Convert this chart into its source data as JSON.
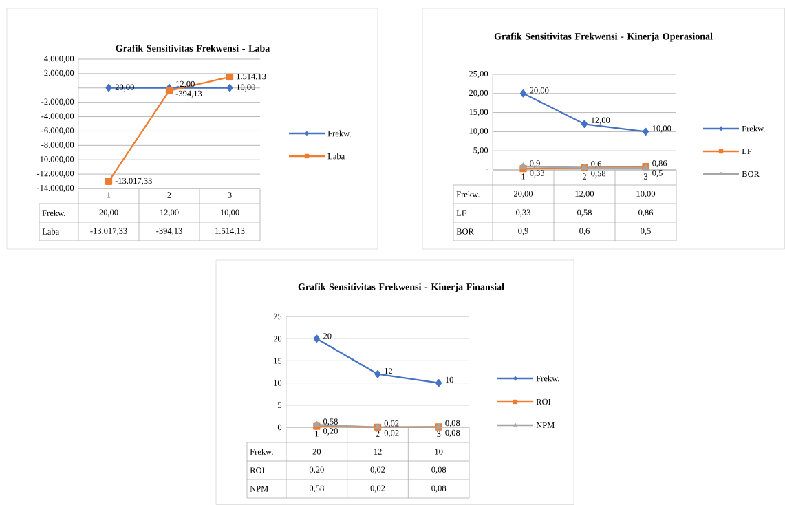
{
  "chart_data": [
    {
      "type": "line",
      "title": "Grafik Sensitivitas Frekwensi - Laba",
      "categories": [
        "1",
        "2",
        "3"
      ],
      "ylim": [
        -14000,
        4000
      ],
      "yticks": [
        {
          "value": -14000,
          "label": "-14.000,00"
        },
        {
          "value": -12000,
          "label": "-12.000,00"
        },
        {
          "value": -10000,
          "label": "-10.000,00"
        },
        {
          "value": -8000,
          "label": "-8.000,00"
        },
        {
          "value": -6000,
          "label": "-6.000,00"
        },
        {
          "value": -4000,
          "label": "-4.000,00"
        },
        {
          "value": -2000,
          "label": "-2.000,00"
        },
        {
          "value": 0,
          "label": "-"
        },
        {
          "value": 2000,
          "label": "2.000,00"
        },
        {
          "value": 4000,
          "label": "4.000,00"
        }
      ],
      "grid": "y",
      "legend": "right",
      "series": [
        {
          "name": "Frekw.",
          "color": "#4472c4",
          "marker": "diamond",
          "values": [
            20,
            12,
            10
          ],
          "value_labels": [
            "20,00",
            "12,00",
            "10,00"
          ]
        },
        {
          "name": "Laba",
          "color": "#ed7d31",
          "marker": "square",
          "values": [
            -13017.33,
            -394.13,
            1514.13
          ],
          "value_labels": [
            "-13.017,33",
            "-394,13",
            "1.514,13"
          ]
        }
      ]
    },
    {
      "type": "line",
      "title": "Grafik Sensitivitas Frekwensi - Kinerja Operasional",
      "categories": [
        "1",
        "2",
        "3"
      ],
      "ylim": [
        0,
        25
      ],
      "yticks": [
        {
          "value": 0,
          "label": "-"
        },
        {
          "value": 5,
          "label": "5,00"
        },
        {
          "value": 10,
          "label": "10,00"
        },
        {
          "value": 15,
          "label": "15,00"
        },
        {
          "value": 20,
          "label": "20,00"
        },
        {
          "value": 25,
          "label": "25,00"
        }
      ],
      "grid": "y",
      "legend": "right",
      "series": [
        {
          "name": "Frekw.",
          "color": "#4472c4",
          "marker": "diamond",
          "values": [
            20,
            12,
            10
          ],
          "value_labels": [
            "20,00",
            "12,00",
            "10,00"
          ]
        },
        {
          "name": "LF",
          "color": "#ed7d31",
          "marker": "square",
          "values": [
            0.33,
            0.58,
            0.86
          ],
          "value_labels": [
            "0,33",
            "0,58",
            "0,86"
          ]
        },
        {
          "name": "BOR",
          "color": "#a5a5a5",
          "marker": "triangle",
          "values": [
            0.9,
            0.6,
            0.5
          ],
          "value_labels": [
            "0,9",
            "0,6",
            "0,5"
          ]
        }
      ]
    },
    {
      "type": "line",
      "title": "Grafik Sensitivitas Frekwensi - Kinerja Finansial",
      "categories": [
        "1",
        "2",
        "3"
      ],
      "ylim": [
        0,
        25
      ],
      "yticks": [
        0,
        5,
        10,
        15,
        20,
        25
      ],
      "grid": "y",
      "legend": "right",
      "series": [
        {
          "name": "Frekw.",
          "color": "#4472c4",
          "marker": "diamond",
          "values": [
            20,
            12,
            10
          ],
          "value_labels": [
            "20",
            "12",
            "10"
          ]
        },
        {
          "name": "ROI",
          "color": "#ed7d31",
          "marker": "square",
          "values": [
            0.2,
            0.02,
            0.08
          ],
          "value_labels": [
            "0,20",
            "0,02",
            "0,08"
          ]
        },
        {
          "name": "NPM",
          "color": "#a5a5a5",
          "marker": "triangle",
          "values": [
            0.58,
            0.02,
            0.08
          ],
          "value_labels": [
            "0,58",
            "0,02",
            "0,08"
          ]
        }
      ]
    }
  ]
}
